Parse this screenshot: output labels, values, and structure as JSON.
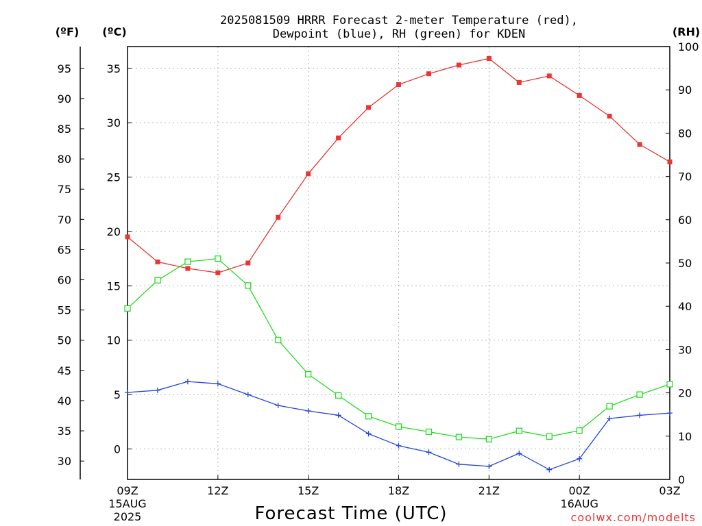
{
  "title_line1": "2025081509 HRRR Forecast 2-meter Temperature (red),",
  "title_line2": "Dewpoint (blue), RH (green) for KDEN",
  "units": {
    "fahrenheit": "(ºF)",
    "celsius": "(ºC)",
    "rh": "(RH)"
  },
  "x_axis_title": "Forecast Time (UTC)",
  "credit": "coolwx.com/modelts",
  "x_ticks": [
    {
      "label": "09Z",
      "sub1": "15AUG",
      "sub2": "2025"
    },
    {
      "label": "12Z",
      "sub1": "",
      "sub2": ""
    },
    {
      "label": "15Z",
      "sub1": "",
      "sub2": ""
    },
    {
      "label": "18Z",
      "sub1": "",
      "sub2": ""
    },
    {
      "label": "21Z",
      "sub1": "",
      "sub2": ""
    },
    {
      "label": "00Z",
      "sub1": "16AUG",
      "sub2": ""
    },
    {
      "label": "03Z",
      "sub1": "",
      "sub2": ""
    }
  ],
  "celsius_ticks": [
    "0",
    "5",
    "10",
    "15",
    "20",
    "25",
    "30",
    "35"
  ],
  "fahrenheit_ticks": [
    "30",
    "35",
    "40",
    "45",
    "50",
    "55",
    "60",
    "65",
    "70",
    "75",
    "80",
    "85",
    "90",
    "95"
  ],
  "rh_ticks": [
    "0",
    "10",
    "20",
    "30",
    "40",
    "50",
    "60",
    "70",
    "80",
    "90",
    "100"
  ],
  "colors": {
    "temperature": "#ee3333",
    "dewpoint": "#2244dd",
    "rh": "#22dd22",
    "grid": "#b4b4b4"
  },
  "chart_data": {
    "type": "line",
    "x": [
      "09Z",
      "10Z",
      "11Z",
      "12Z",
      "13Z",
      "14Z",
      "15Z",
      "16Z",
      "17Z",
      "18Z",
      "19Z",
      "20Z",
      "21Z",
      "22Z",
      "23Z",
      "00Z",
      "01Z",
      "02Z",
      "03Z"
    ],
    "left_axis_celsius_range": [
      -2.8,
      37
    ],
    "right_axis_rh_range": [
      0,
      100
    ],
    "grid": true,
    "series": [
      {
        "name": "Temperature",
        "axis": "celsius",
        "marker": "filled-square",
        "values": [
          19.5,
          17.2,
          16.6,
          16.2,
          17.1,
          21.3,
          25.3,
          28.6,
          31.4,
          33.5,
          34.5,
          35.3,
          35.9,
          33.7,
          34.3,
          32.5,
          30.6,
          28.0,
          26.4
        ]
      },
      {
        "name": "Dewpoint",
        "axis": "celsius",
        "marker": "plus",
        "values": [
          5.2,
          5.4,
          6.2,
          6.0,
          5.0,
          4.0,
          3.5,
          3.1,
          1.4,
          0.3,
          -0.3,
          -1.4,
          -1.6,
          -0.4,
          -1.9,
          -0.9,
          2.8,
          3.1,
          3.3
        ]
      },
      {
        "name": "RH",
        "axis": "rh",
        "marker": "open-square",
        "values": [
          39.5,
          46,
          50.3,
          51,
          44.8,
          32.2,
          24.3,
          19.4,
          14.6,
          12.2,
          11.0,
          9.8,
          9.3,
          11.2,
          9.9,
          11.3,
          16.9,
          19.6,
          22.0
        ]
      }
    ]
  }
}
